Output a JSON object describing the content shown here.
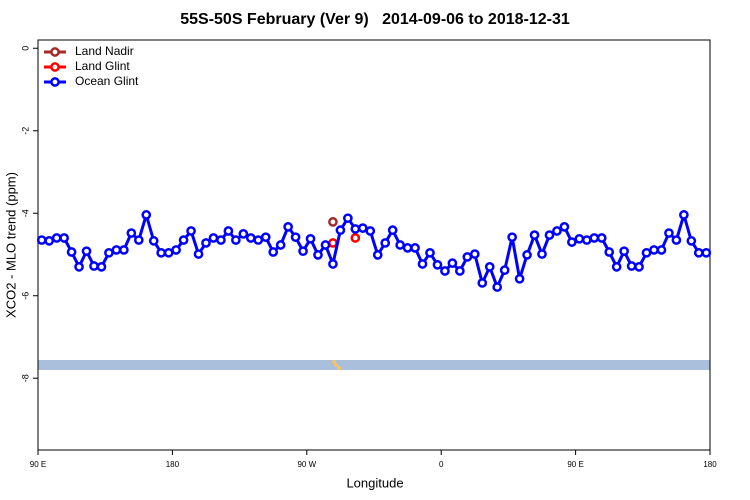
{
  "chart_data": {
    "type": "line",
    "title": "55S-50S February (Ver 9)   2014-09-06 to 2018-12-31",
    "x_label": "Longitude",
    "y_label": "XCO2 - MLO trend (ppm)",
    "xlim": [
      90,
      540
    ],
    "ylim": [
      -9.74,
      0.2
    ],
    "xticks": [
      {
        "value": 90,
        "label": "90 E"
      },
      180,
      {
        "value": 270,
        "label": "90 W"
      },
      {
        "value": 360,
        "label": "0"
      },
      {
        "value": 450,
        "label": "90 E"
      },
      {
        "value": 540,
        "label": "180"
      }
    ],
    "yticks": [
      0,
      -2,
      -4,
      -6,
      -8
    ],
    "legend": "top-left",
    "series": [
      {
        "name": "Land Nadir",
        "color": "#a52a2a",
        "x": [
          287.5
        ],
        "values": [
          -4.21
        ]
      },
      {
        "name": "Land Glint",
        "color": "#ff0000",
        "x": [
          287.5,
          292.5,
          297.5,
          302.5
        ],
        "values": [
          -4.72,
          null,
          null,
          -4.6
        ]
      },
      {
        "name": "Ocean Glint",
        "color": "#0000ff",
        "x": [
          92.5,
          97.5,
          102.5,
          107.5,
          112.5,
          117.5,
          122.5,
          127.5,
          132.5,
          137.5,
          142.5,
          147.5,
          152.5,
          157.5,
          162.5,
          167.5,
          172.5,
          177.5,
          182.5,
          187.5,
          192.5,
          197.5,
          202.5,
          207.5,
          212.5,
          217.5,
          222.5,
          227.5,
          232.5,
          237.5,
          242.5,
          247.5,
          252.5,
          257.5,
          262.5,
          267.5,
          272.5,
          277.5,
          282.5,
          287.5,
          292.5,
          297.5,
          302.5,
          307.5,
          312.5,
          317.5,
          322.5,
          327.5,
          332.5,
          337.5,
          342.5,
          347.5,
          352.5,
          357.5,
          362.5,
          367.5,
          372.5,
          377.5,
          382.5,
          387.5,
          392.5,
          397.5,
          402.5,
          407.5,
          412.5,
          417.5,
          422.5,
          427.5,
          432.5,
          437.5,
          442.5,
          447.5,
          452.5,
          457.5,
          462.5,
          467.5,
          472.5,
          477.5,
          482.5,
          487.5,
          492.5,
          497.5,
          502.5,
          507.5,
          512.5,
          517.5,
          522.5,
          527.5,
          532.5,
          537.5
        ],
        "values": [
          -4.65,
          -4.67,
          -4.6,
          -4.6,
          -4.94,
          -5.3,
          -4.92,
          -5.28,
          -5.3,
          -4.96,
          -4.89,
          -4.89,
          -4.48,
          -4.65,
          -4.04,
          -4.67,
          -4.96,
          -4.96,
          -4.89,
          -4.65,
          -4.43,
          -4.99,
          -4.72,
          -4.6,
          -4.65,
          -4.43,
          -4.65,
          -4.5,
          -4.6,
          -4.65,
          -4.58,
          -4.94,
          -4.77,
          -4.33,
          -4.58,
          -4.92,
          -4.62,
          -5.01,
          -4.77,
          -5.23,
          -4.41,
          -4.12,
          -4.38,
          -4.36,
          -4.43,
          -5.01,
          -4.72,
          -4.41,
          -4.77,
          -4.84,
          -4.84,
          -5.23,
          -4.96,
          -5.25,
          -5.4,
          -5.21,
          -5.4,
          -5.06,
          -4.99,
          -5.69,
          -5.3,
          -5.79,
          -5.38,
          -4.58,
          -5.59,
          -5.01,
          -4.53,
          -4.99,
          -4.53,
          -4.43,
          -4.33,
          -4.7,
          -4.62,
          -4.65,
          -4.6,
          -4.6,
          -4.94,
          -5.3,
          -4.92,
          -5.28,
          -5.3,
          -4.96,
          -4.89,
          -4.89,
          -4.48,
          -4.65,
          -4.04,
          -4.67,
          -4.96,
          -4.96
        ]
      }
    ]
  }
}
